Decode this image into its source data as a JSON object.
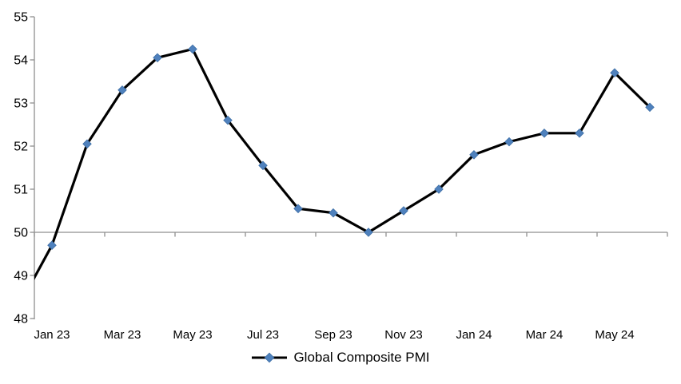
{
  "chart_data": {
    "type": "line",
    "title": "",
    "legend_label": "Global Composite PMI",
    "legend_position": "bottom-center",
    "categories": [
      "Dec 22",
      "Jan 23",
      "Feb 23",
      "Mar 23",
      "Apr 23",
      "May 23",
      "Jun 23",
      "Jul 23",
      "Aug 23",
      "Sep 23",
      "Oct 23",
      "Nov 23",
      "Dec 23",
      "Jan 24",
      "Feb 24",
      "Mar 24",
      "Apr 24",
      "May 24",
      "Jun 24"
    ],
    "values": [
      48.2,
      49.7,
      52.05,
      53.3,
      54.05,
      54.25,
      52.6,
      51.55,
      50.55,
      50.45,
      50.0,
      50.5,
      51.0,
      51.8,
      52.1,
      52.3,
      52.3,
      53.7,
      52.9
    ],
    "x_tick_labels": [
      "Jan 23",
      "Mar 23",
      "May 23",
      "Jul 23",
      "Sep 23",
      "Nov 23",
      "Jan 24",
      "Mar 24",
      "May 24"
    ],
    "x_label_interval_months": 2,
    "y_tick_labels": [
      "55",
      "54",
      "53",
      "52",
      "51",
      "50",
      "49",
      "48"
    ],
    "ylim": [
      48,
      55
    ],
    "x_axis_crosses_at": 50,
    "first_point_clipped_at_left_axis": true,
    "grid": false,
    "marker_shape": "diamond",
    "colors": {
      "line": "#000000",
      "marker": "#4F81BD",
      "marker_edge": "#3D6EA5",
      "axis": "#8F8F8F",
      "label_text": "#000000",
      "background": "#FFFFFF"
    }
  }
}
